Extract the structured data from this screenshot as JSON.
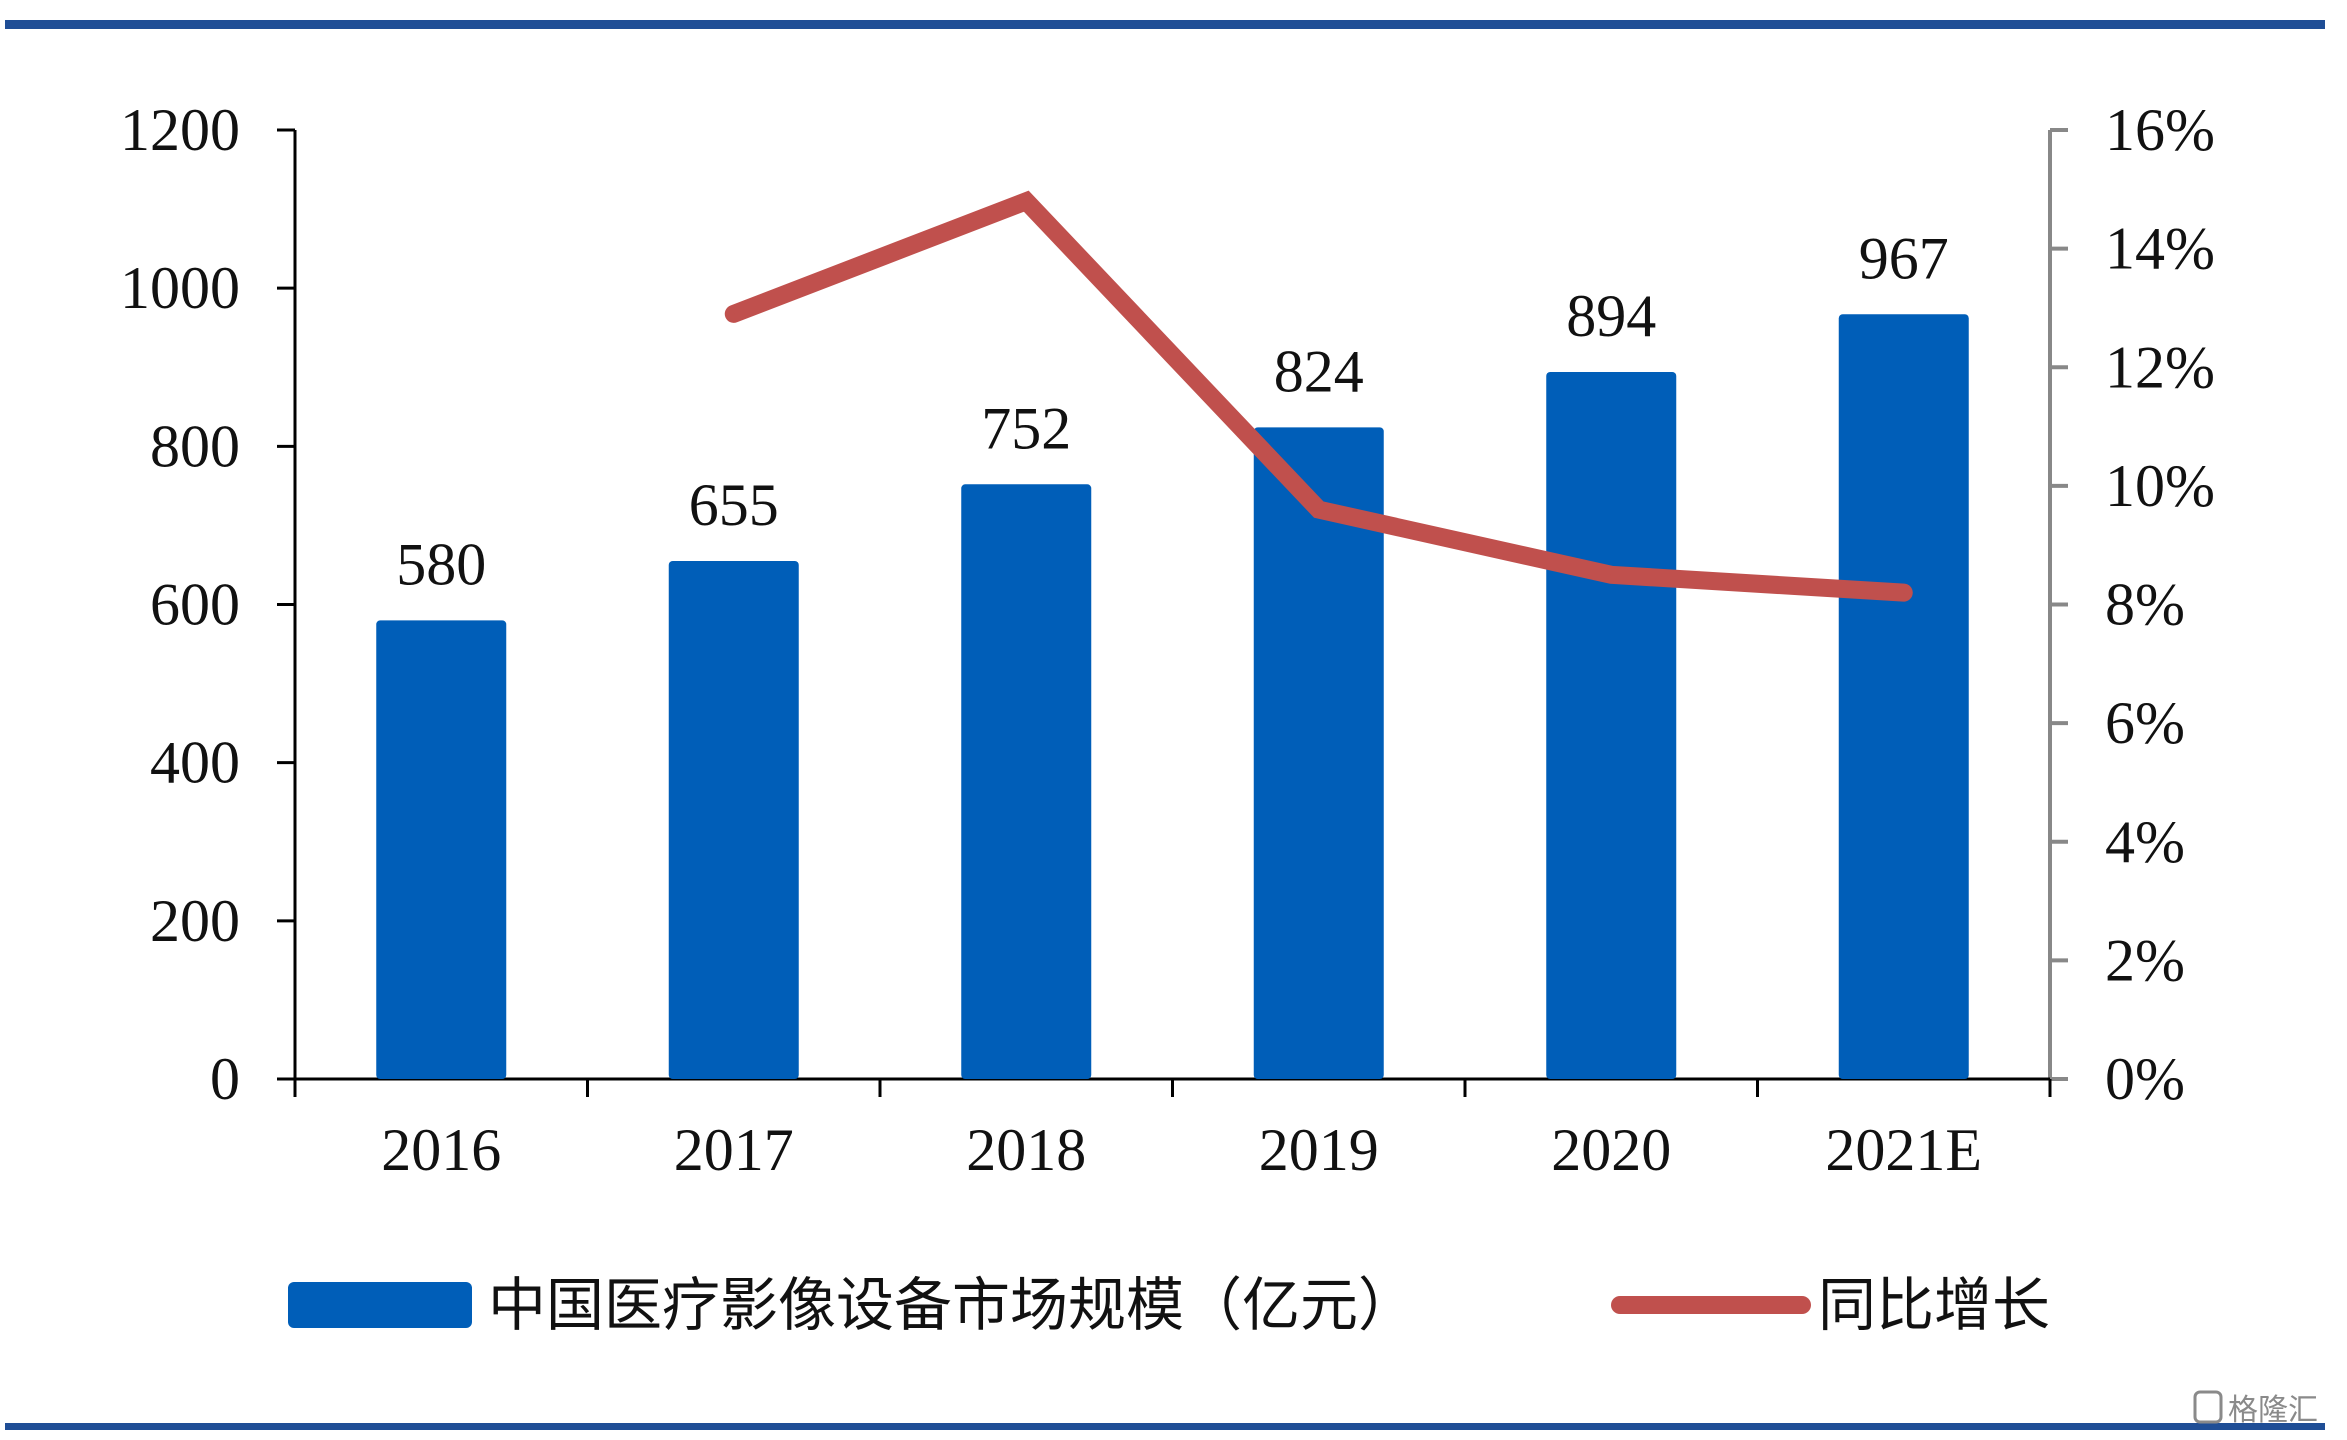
{
  "colors": {
    "bar": "#005EB8",
    "line": "#C0504D",
    "frame": "#1F4E96",
    "axis": "#000000",
    "right_axis": "#888888"
  },
  "chart_data": {
    "type": "bar",
    "categories": [
      "2016",
      "2017",
      "2018",
      "2019",
      "2020",
      "2021E"
    ],
    "series": [
      {
        "name": "中国医疗影像设备市场规模（亿元）",
        "type": "bar",
        "axis": "left",
        "values": [
          580,
          655,
          752,
          824,
          894,
          967
        ],
        "labels": [
          "580",
          "655",
          "752",
          "824",
          "894",
          "967"
        ]
      },
      {
        "name": "同比增长",
        "type": "line",
        "axis": "right",
        "values": [
          null,
          12.9,
          14.8,
          9.6,
          8.5,
          8.2
        ]
      }
    ],
    "ylim": [
      0,
      1200
    ],
    "y_ticks": [
      "0",
      "200",
      "400",
      "600",
      "800",
      "1000",
      "1200"
    ],
    "y2lim": [
      0,
      16
    ],
    "y2_ticks": [
      "0%",
      "2%",
      "4%",
      "6%",
      "8%",
      "10%",
      "12%",
      "14%",
      "16%"
    ],
    "legend": "bottom",
    "grid": false
  },
  "watermark": {
    "text": "格隆汇"
  }
}
